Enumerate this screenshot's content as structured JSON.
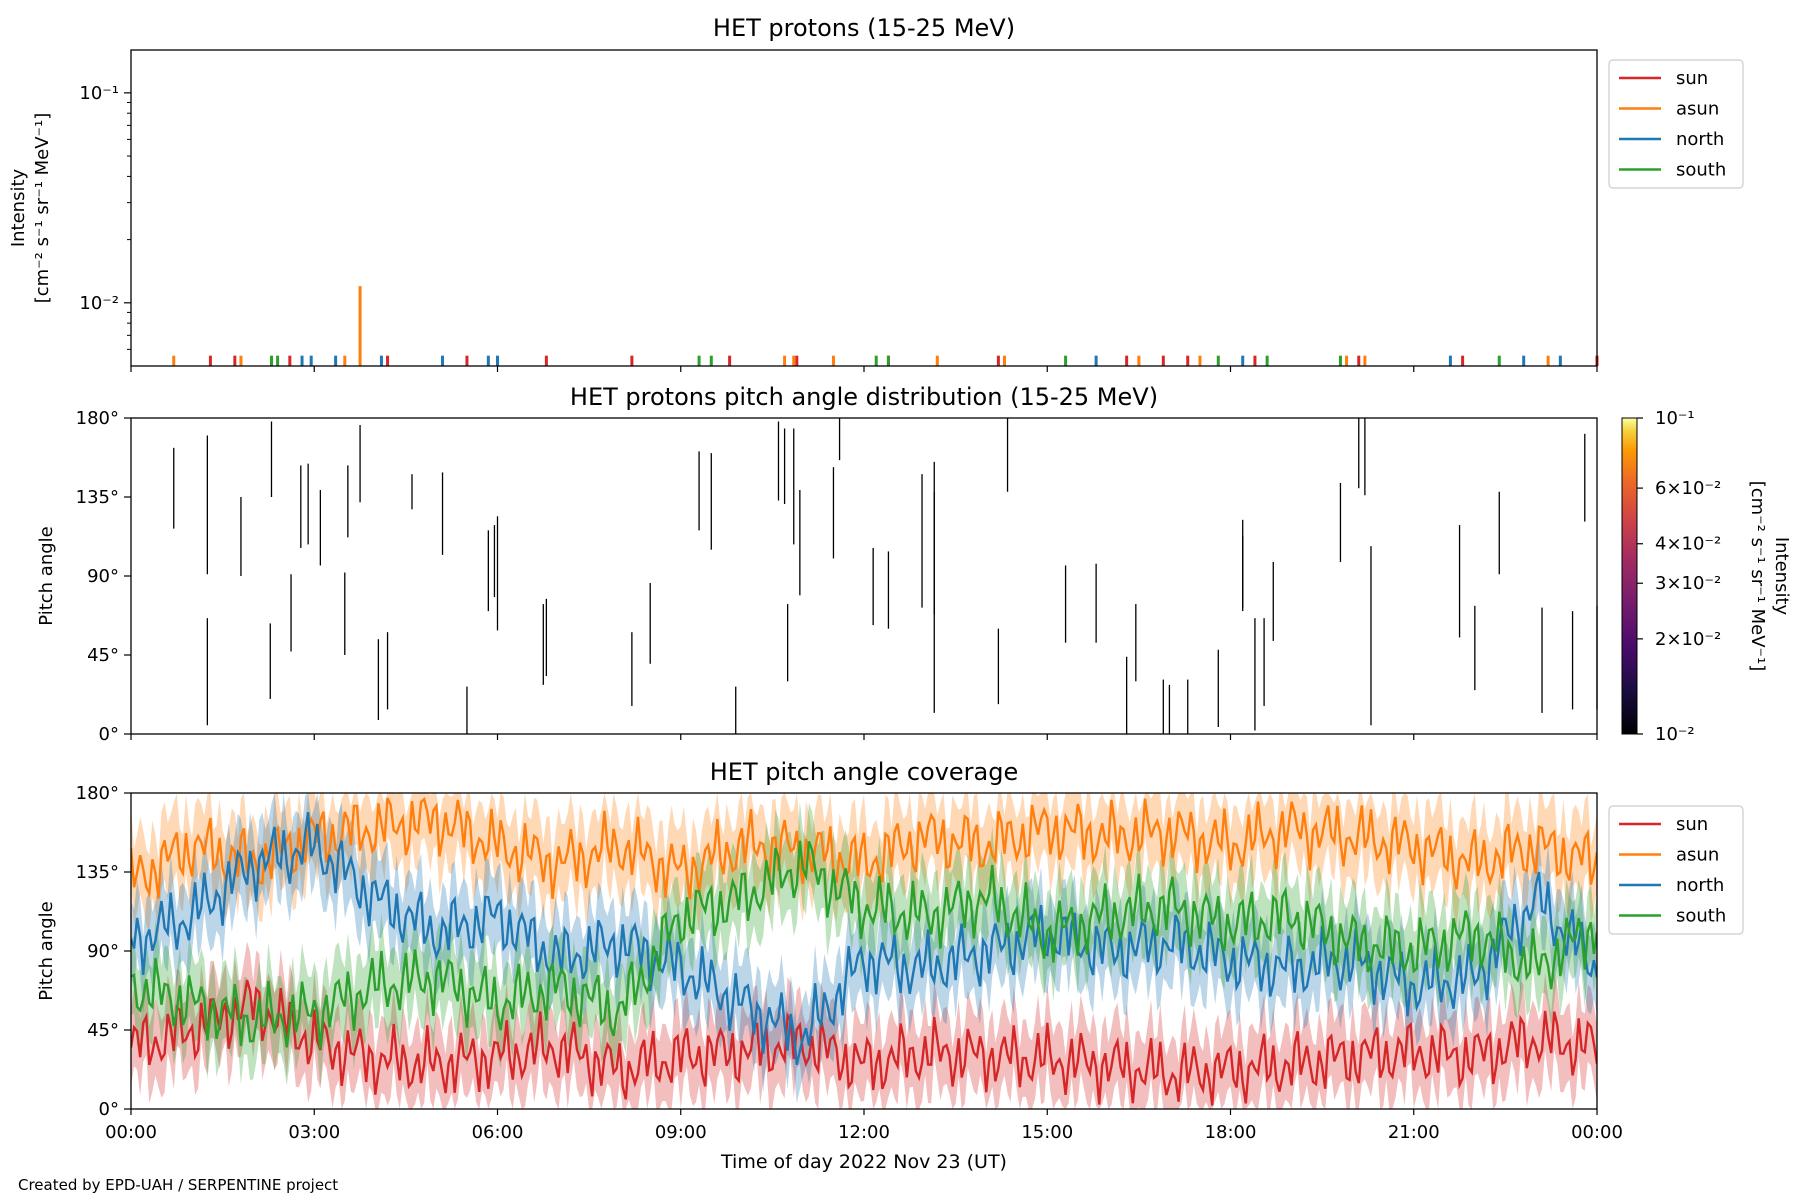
{
  "credit": "Created by EPD-UAH / SERPENTINE project",
  "colors": {
    "sun": "#d62728",
    "asun": "#ff7f0e",
    "north": "#1f77b4",
    "south": "#2ca02c"
  },
  "chart_data": [
    {
      "type": "line",
      "title": "HET protons (15-25 MeV)",
      "ylabel_line1": "Intensity",
      "ylabel_line2": "[cm⁻² s⁻¹ sr⁻¹ MeV⁻¹]",
      "yscale": "log",
      "ylim": [
        0.005,
        0.16
      ],
      "yticks": [
        {
          "value": 0.1,
          "label": "10⁻¹"
        },
        {
          "value": 0.01,
          "label": "10⁻²"
        }
      ],
      "legend": {
        "placement": "right-top",
        "entries": [
          "sun",
          "asun",
          "north",
          "south"
        ]
      },
      "spikes": {
        "sun": [
          [
            1.3,
            0.0056
          ],
          [
            1.7,
            0.0056
          ],
          [
            2.6,
            0.0056
          ],
          [
            4.2,
            0.0056
          ],
          [
            5.5,
            0.0056
          ],
          [
            6.8,
            0.0056
          ],
          [
            8.2,
            0.0056
          ],
          [
            9.8,
            0.0056
          ],
          [
            10.9,
            0.0056
          ],
          [
            12.4,
            0.0056
          ],
          [
            14.2,
            0.0056
          ],
          [
            16.3,
            0.0056
          ],
          [
            16.9,
            0.0056
          ],
          [
            17.3,
            0.0056
          ],
          [
            18.4,
            0.0056
          ],
          [
            20.1,
            0.0056
          ],
          [
            21.8,
            0.0056
          ],
          [
            24.0,
            0.0056
          ]
        ],
        "asun": [
          [
            0.7,
            0.0056
          ],
          [
            1.8,
            0.0056
          ],
          [
            3.5,
            0.0056
          ],
          [
            3.75,
            0.012
          ],
          [
            10.7,
            0.0056
          ],
          [
            10.85,
            0.0056
          ],
          [
            11.5,
            0.0056
          ],
          [
            13.2,
            0.0056
          ],
          [
            14.3,
            0.0056
          ],
          [
            16.5,
            0.0056
          ],
          [
            17.5,
            0.0056
          ],
          [
            19.9,
            0.0056
          ],
          [
            20.2,
            0.0056
          ],
          [
            23.2,
            0.0056
          ]
        ],
        "north": [
          [
            2.8,
            0.0056
          ],
          [
            2.95,
            0.0056
          ],
          [
            3.35,
            0.0056
          ],
          [
            4.1,
            0.0056
          ],
          [
            5.1,
            0.0056
          ],
          [
            5.85,
            0.0056
          ],
          [
            6.0,
            0.0056
          ],
          [
            15.8,
            0.0056
          ],
          [
            18.2,
            0.0056
          ],
          [
            21.6,
            0.0056
          ],
          [
            22.8,
            0.0056
          ],
          [
            23.4,
            0.0056
          ]
        ],
        "south": [
          [
            2.3,
            0.0056
          ],
          [
            2.4,
            0.0056
          ],
          [
            9.3,
            0.0056
          ],
          [
            9.5,
            0.0056
          ],
          [
            12.2,
            0.0056
          ],
          [
            12.4,
            0.0056
          ],
          [
            15.3,
            0.0056
          ],
          [
            17.8,
            0.0056
          ],
          [
            18.6,
            0.0056
          ],
          [
            19.8,
            0.0056
          ],
          [
            22.4,
            0.0056
          ]
        ]
      }
    },
    {
      "type": "heatmap",
      "title": "HET protons pitch angle distribution (15-25 MeV)",
      "ylabel": "Pitch angle",
      "ylim": [
        0,
        180
      ],
      "yticks": [
        {
          "value": 0,
          "label": "0°"
        },
        {
          "value": 45,
          "label": "45°"
        },
        {
          "value": 90,
          "label": "90°"
        },
        {
          "value": 135,
          "label": "135°"
        },
        {
          "value": 180,
          "label": "180°"
        }
      ],
      "colorbar": {
        "colormap": "inferno",
        "scale": "log",
        "range": [
          0.01,
          0.1
        ],
        "label_line1": "Intensity",
        "label_line2": "[cm⁻² s⁻¹ sr⁻¹ MeV⁻¹]",
        "ticks": [
          {
            "value": 0.1,
            "label": "10⁻¹"
          },
          {
            "value": 0.06,
            "label": "6×10⁻²"
          },
          {
            "value": 0.04,
            "label": "4×10⁻²"
          },
          {
            "value": 0.03,
            "label": "3×10⁻²"
          },
          {
            "value": 0.02,
            "label": "2×10⁻²"
          },
          {
            "value": 0.01,
            "label": "10⁻²"
          }
        ]
      },
      "segments": [
        [
          0.7,
          117,
          163
        ],
        [
          1.25,
          91,
          170
        ],
        [
          1.25,
          5,
          66
        ],
        [
          1.8,
          90,
          135
        ],
        [
          2.3,
          135,
          178
        ],
        [
          2.28,
          20,
          63
        ],
        [
          2.62,
          47,
          91
        ],
        [
          2.78,
          106,
          153
        ],
        [
          2.9,
          108,
          154
        ],
        [
          3.1,
          96,
          139
        ],
        [
          3.5,
          45,
          92
        ],
        [
          3.55,
          112,
          153
        ],
        [
          3.75,
          132,
          176
        ],
        [
          4.05,
          8,
          54
        ],
        [
          4.2,
          14,
          58
        ],
        [
          4.6,
          128,
          148
        ],
        [
          5.1,
          102,
          149
        ],
        [
          5.5,
          0,
          27
        ],
        [
          5.85,
          70,
          116
        ],
        [
          5.95,
          78,
          119
        ],
        [
          6.0,
          59,
          124
        ],
        [
          6.75,
          28,
          74
        ],
        [
          6.8,
          33,
          77
        ],
        [
          8.2,
          16,
          58
        ],
        [
          8.5,
          40,
          86
        ],
        [
          9.3,
          116,
          161
        ],
        [
          9.5,
          105,
          160
        ],
        [
          9.9,
          0,
          27
        ],
        [
          10.6,
          133,
          178
        ],
        [
          10.7,
          131,
          174
        ],
        [
          10.75,
          30,
          74
        ],
        [
          10.85,
          108,
          174
        ],
        [
          10.95,
          79,
          139
        ],
        [
          11.5,
          100,
          152
        ],
        [
          11.6,
          156,
          180
        ],
        [
          12.15,
          62,
          106
        ],
        [
          12.4,
          60,
          104
        ],
        [
          12.95,
          72,
          148
        ],
        [
          13.15,
          68,
          155
        ],
        [
          13.15,
          12,
          138
        ],
        [
          14.2,
          17,
          60
        ],
        [
          14.35,
          138,
          180
        ],
        [
          15.3,
          52,
          96
        ],
        [
          15.8,
          52,
          97
        ],
        [
          16.3,
          0,
          44
        ],
        [
          16.45,
          30,
          74
        ],
        [
          16.9,
          0,
          31
        ],
        [
          17.0,
          0,
          28
        ],
        [
          17.3,
          0,
          31
        ],
        [
          17.8,
          4,
          48
        ],
        [
          18.2,
          72,
          122
        ],
        [
          18.2,
          70,
          113
        ],
        [
          18.4,
          2,
          66
        ],
        [
          18.55,
          16,
          66
        ],
        [
          18.7,
          53,
          98
        ],
        [
          19.8,
          98,
          143
        ],
        [
          20.1,
          140,
          180
        ],
        [
          20.2,
          136,
          180
        ],
        [
          20.3,
          5,
          107
        ],
        [
          21.75,
          55,
          119
        ],
        [
          22.0,
          25,
          73
        ],
        [
          22.4,
          91,
          138
        ],
        [
          23.1,
          12,
          72
        ],
        [
          23.6,
          14,
          70
        ],
        [
          23.8,
          121,
          171
        ],
        [
          24.0,
          14,
          73
        ]
      ]
    },
    {
      "type": "line",
      "title": "HET pitch angle coverage",
      "ylabel": "Pitch angle",
      "xlabel": "Time of day 2022 Nov 23 (UT)",
      "ylim": [
        0,
        180
      ],
      "yticks": [
        {
          "value": 0,
          "label": "0°"
        },
        {
          "value": 45,
          "label": "45°"
        },
        {
          "value": 90,
          "label": "90°"
        },
        {
          "value": 135,
          "label": "135°"
        },
        {
          "value": 180,
          "label": "180°"
        }
      ],
      "xticks": [
        "00:00",
        "03:00",
        "06:00",
        "09:00",
        "12:00",
        "15:00",
        "18:00",
        "21:00",
        "00:00"
      ],
      "xlim_hours": [
        0,
        24
      ],
      "legend": {
        "placement": "right-top",
        "entries": [
          "sun",
          "asun",
          "north",
          "south"
        ]
      },
      "band_halfwidth_deg": 22,
      "series": [
        {
          "name": "sun",
          "x": [
            0,
            1,
            2,
            3,
            4,
            5,
            6,
            7,
            8,
            9,
            10,
            11,
            12,
            13,
            14,
            15,
            16,
            17,
            18,
            19,
            20,
            21,
            22,
            23,
            24
          ],
          "y": [
            35,
            45,
            60,
            38,
            28,
            25,
            30,
            35,
            22,
            30,
            33,
            38,
            25,
            32,
            30,
            28,
            25,
            20,
            22,
            25,
            30,
            32,
            30,
            40,
            35
          ]
        },
        {
          "name": "asun",
          "x": [
            0,
            1,
            2,
            3,
            4,
            5,
            6,
            7,
            8,
            9,
            10,
            11,
            12,
            13,
            14,
            15,
            16,
            17,
            18,
            19,
            20,
            21,
            22,
            23,
            24
          ],
          "y": [
            130,
            150,
            140,
            155,
            160,
            165,
            150,
            140,
            150,
            135,
            150,
            148,
            140,
            155,
            150,
            160,
            155,
            158,
            150,
            160,
            155,
            150,
            140,
            150,
            140
          ]
        },
        {
          "name": "north",
          "x": [
            0,
            1,
            2,
            3,
            4,
            5,
            6,
            7,
            8,
            9,
            10,
            11,
            12,
            13,
            14,
            15,
            16,
            17,
            18,
            19,
            20,
            21,
            22,
            23,
            24
          ],
          "y": [
            95,
            110,
            140,
            150,
            120,
            100,
            110,
            85,
            95,
            80,
            60,
            40,
            85,
            80,
            90,
            100,
            90,
            95,
            85,
            80,
            85,
            70,
            75,
            120,
            80
          ]
        },
        {
          "name": "south",
          "x": [
            0,
            1,
            2,
            3,
            4,
            5,
            6,
            7,
            8,
            9,
            10,
            11,
            12,
            13,
            14,
            15,
            16,
            17,
            18,
            19,
            20,
            21,
            22,
            23,
            24
          ],
          "y": [
            70,
            60,
            50,
            55,
            70,
            75,
            60,
            70,
            55,
            110,
            120,
            140,
            115,
            110,
            120,
            100,
            110,
            115,
            105,
            110,
            95,
            90,
            100,
            80,
            105
          ]
        }
      ]
    }
  ]
}
